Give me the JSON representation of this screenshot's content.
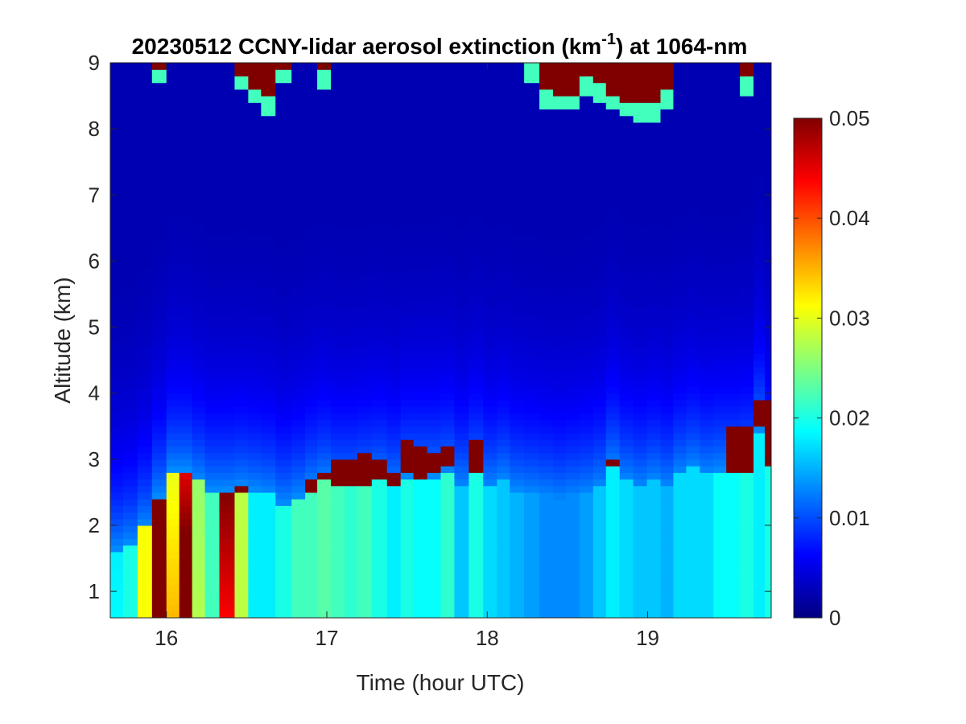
{
  "chart_data": {
    "type": "heatmap",
    "title": "20230512 CCNY-lidar aerosol extinction (km",
    "title_superscript": "-1",
    "title_suffix": ") at 1064-nm",
    "xlabel": "Time (hour UTC)",
    "ylabel": "Altitude (km)",
    "xlim": [
      15.65,
      19.77
    ],
    "ylim": [
      0.6,
      9.0
    ],
    "x_ticks": [
      16,
      17,
      18,
      19
    ],
    "x_tick_labels": [
      "16",
      "17",
      "18",
      "19"
    ],
    "y_ticks": [
      1,
      2,
      3,
      4,
      5,
      6,
      7,
      8,
      9
    ],
    "y_tick_labels": [
      "1",
      "2",
      "3",
      "4",
      "5",
      "6",
      "7",
      "8",
      "9"
    ],
    "colormap": "jet",
    "clim": [
      0,
      0.05
    ],
    "colorbar_ticks": [
      0,
      0.01,
      0.02,
      0.03,
      0.04,
      0.05
    ],
    "colorbar_tick_labels": [
      "0",
      "0.01",
      "0.02",
      "0.03",
      "0.04",
      "0.05"
    ],
    "grid": false,
    "time_step_hours": 0.05,
    "altitude_step_km": 0.1,
    "profiles": [
      {
        "t": 15.68,
        "pbl": 1.65,
        "near": 0.019,
        "pbl_val": 0.018,
        "cloud_base": null,
        "cloud_top": null,
        "top_cloud": null
      },
      {
        "t": 15.78,
        "pbl": 1.75,
        "near": 0.02,
        "pbl_val": 0.02,
        "cloud_base": null,
        "cloud_top": null,
        "top_cloud": null
      },
      {
        "t": 15.86,
        "pbl": 2.0,
        "near": 0.031,
        "pbl_val": 0.031,
        "cloud_base": null,
        "cloud_top": null,
        "top_cloud": null
      },
      {
        "t": 15.96,
        "pbl": 2.45,
        "near": 0.06,
        "pbl_val": 0.06,
        "cloud_base": null,
        "cloud_top": null,
        "top_cloud": 8.9
      },
      {
        "t": 16.04,
        "pbl": 2.85,
        "near": 0.036,
        "pbl_val": 0.03,
        "cloud_base": null,
        "cloud_top": null,
        "top_cloud": null
      },
      {
        "t": 16.12,
        "pbl": 2.85,
        "near": 0.06,
        "pbl_val": 0.045,
        "cloud_base": null,
        "cloud_top": null,
        "top_cloud": null
      },
      {
        "t": 16.2,
        "pbl": 2.7,
        "near": 0.028,
        "pbl_val": 0.026,
        "cloud_base": null,
        "cloud_top": null,
        "top_cloud": null
      },
      {
        "t": 16.28,
        "pbl": 2.55,
        "near": 0.022,
        "pbl_val": 0.022,
        "cloud_base": null,
        "cloud_top": null,
        "top_cloud": null
      },
      {
        "t": 16.38,
        "pbl": 2.55,
        "near": 0.042,
        "pbl_val": 0.05,
        "cloud_base": null,
        "cloud_top": null,
        "top_cloud": null
      },
      {
        "t": 16.47,
        "pbl": 2.6,
        "near": 0.028,
        "pbl_val": 0.028,
        "cloud_base": 2.55,
        "cloud_top": 2.65,
        "top_cloud": 8.8
      },
      {
        "t": 16.55,
        "pbl": 2.55,
        "near": 0.018,
        "pbl_val": 0.018,
        "cloud_base": null,
        "cloud_top": null,
        "top_cloud": 8.6
      },
      {
        "t": 16.63,
        "pbl": 2.5,
        "near": 0.018,
        "pbl_val": 0.018,
        "cloud_base": null,
        "cloud_top": null,
        "top_cloud": 8.45
      },
      {
        "t": 16.73,
        "pbl": 2.35,
        "near": 0.02,
        "pbl_val": 0.02,
        "cloud_base": null,
        "cloud_top": null,
        "top_cloud": 8.9
      },
      {
        "t": 16.83,
        "pbl": 2.45,
        "near": 0.022,
        "pbl_val": 0.022,
        "cloud_base": null,
        "cloud_top": null,
        "top_cloud": null
      },
      {
        "t": 16.9,
        "pbl": 2.6,
        "near": 0.022,
        "pbl_val": 0.022,
        "cloud_base": 2.55,
        "cloud_top": 2.75,
        "top_cloud": null
      },
      {
        "t": 16.98,
        "pbl": 2.7,
        "near": 0.023,
        "pbl_val": 0.023,
        "cloud_base": 2.7,
        "cloud_top": 2.85,
        "top_cloud": 8.85
      },
      {
        "t": 17.07,
        "pbl": 2.6,
        "near": 0.022,
        "pbl_val": 0.022,
        "cloud_base": 2.6,
        "cloud_top": 3.0,
        "top_cloud": null
      },
      {
        "t": 17.15,
        "pbl": 2.6,
        "near": 0.021,
        "pbl_val": 0.021,
        "cloud_base": 2.6,
        "cloud_top": 3.05,
        "top_cloud": null
      },
      {
        "t": 17.23,
        "pbl": 2.65,
        "near": 0.022,
        "pbl_val": 0.022,
        "cloud_base": 2.65,
        "cloud_top": 3.1,
        "top_cloud": null
      },
      {
        "t": 17.33,
        "pbl": 2.7,
        "near": 0.02,
        "pbl_val": 0.02,
        "cloud_base": 2.7,
        "cloud_top": 3.0,
        "top_cloud": null
      },
      {
        "t": 17.42,
        "pbl": 2.6,
        "near": 0.018,
        "pbl_val": 0.018,
        "cloud_base": 2.6,
        "cloud_top": 2.8,
        "top_cloud": null
      },
      {
        "t": 17.5,
        "pbl": 2.75,
        "near": 0.02,
        "pbl_val": 0.02,
        "cloud_base": 2.85,
        "cloud_top": 3.35,
        "top_cloud": null
      },
      {
        "t": 17.58,
        "pbl": 2.75,
        "near": 0.019,
        "pbl_val": 0.019,
        "cloud_base": 2.75,
        "cloud_top": 3.25,
        "top_cloud": null
      },
      {
        "t": 17.67,
        "pbl": 2.75,
        "near": 0.019,
        "pbl_val": 0.019,
        "cloud_base": 2.8,
        "cloud_top": 3.15,
        "top_cloud": null
      },
      {
        "t": 17.75,
        "pbl": 2.8,
        "near": 0.021,
        "pbl_val": 0.021,
        "cloud_base": 2.95,
        "cloud_top": 3.2,
        "top_cloud": null
      },
      {
        "t": 17.84,
        "pbl": 2.6,
        "near": 0.016,
        "pbl_val": 0.016,
        "cloud_base": null,
        "cloud_top": null,
        "top_cloud": null
      },
      {
        "t": 17.93,
        "pbl": 2.8,
        "near": 0.02,
        "pbl_val": 0.02,
        "cloud_base": 2.8,
        "cloud_top": 3.3,
        "top_cloud": null
      },
      {
        "t": 18.02,
        "pbl": 2.6,
        "near": 0.017,
        "pbl_val": 0.017,
        "cloud_base": null,
        "cloud_top": null,
        "top_cloud": null
      },
      {
        "t": 18.1,
        "pbl": 2.7,
        "near": 0.016,
        "pbl_val": 0.016,
        "cloud_base": null,
        "cloud_top": null,
        "top_cloud": null
      },
      {
        "t": 18.18,
        "pbl": 2.55,
        "near": 0.015,
        "pbl_val": 0.015,
        "cloud_base": null,
        "cloud_top": null,
        "top_cloud": null
      },
      {
        "t": 18.28,
        "pbl": 2.5,
        "near": 0.014,
        "pbl_val": 0.014,
        "cloud_base": null,
        "cloud_top": null,
        "top_cloud": 8.95
      },
      {
        "t": 18.37,
        "pbl": 2.45,
        "near": 0.013,
        "pbl_val": 0.013,
        "cloud_base": null,
        "cloud_top": null,
        "top_cloud": 8.55
      },
      {
        "t": 18.45,
        "pbl": 2.4,
        "near": 0.013,
        "pbl_val": 0.013,
        "cloud_base": null,
        "cloud_top": null,
        "top_cloud": 8.5
      },
      {
        "t": 18.53,
        "pbl": 2.45,
        "near": 0.013,
        "pbl_val": 0.013,
        "cloud_base": null,
        "cloud_top": null,
        "top_cloud": 8.5
      },
      {
        "t": 18.62,
        "pbl": 2.5,
        "near": 0.014,
        "pbl_val": 0.014,
        "cloud_base": null,
        "cloud_top": null,
        "top_cloud": 8.75
      },
      {
        "t": 18.7,
        "pbl": 2.6,
        "near": 0.016,
        "pbl_val": 0.016,
        "cloud_base": null,
        "cloud_top": null,
        "top_cloud": 8.65
      },
      {
        "t": 18.78,
        "pbl": 2.9,
        "near": 0.018,
        "pbl_val": 0.018,
        "cloud_base": 2.9,
        "cloud_top": 3.05,
        "top_cloud": 8.5
      },
      {
        "t": 18.87,
        "pbl": 2.7,
        "near": 0.017,
        "pbl_val": 0.017,
        "cloud_base": null,
        "cloud_top": null,
        "top_cloud": 8.4
      },
      {
        "t": 18.95,
        "pbl": 2.6,
        "near": 0.016,
        "pbl_val": 0.016,
        "cloud_base": null,
        "cloud_top": null,
        "top_cloud": 8.35
      },
      {
        "t": 19.04,
        "pbl": 2.7,
        "near": 0.016,
        "pbl_val": 0.016,
        "cloud_base": null,
        "cloud_top": null,
        "top_cloud": 8.35
      },
      {
        "t": 19.12,
        "pbl": 2.6,
        "near": 0.015,
        "pbl_val": 0.015,
        "cloud_base": null,
        "cloud_top": null,
        "top_cloud": 8.55
      },
      {
        "t": 19.2,
        "pbl": 2.8,
        "near": 0.017,
        "pbl_val": 0.017,
        "cloud_base": null,
        "cloud_top": null,
        "top_cloud": null
      },
      {
        "t": 19.28,
        "pbl": 2.9,
        "near": 0.017,
        "pbl_val": 0.017,
        "cloud_base": null,
        "cloud_top": null,
        "top_cloud": null
      },
      {
        "t": 19.37,
        "pbl": 2.8,
        "near": 0.017,
        "pbl_val": 0.017,
        "cloud_base": null,
        "cloud_top": null,
        "top_cloud": null
      },
      {
        "t": 19.45,
        "pbl": 2.85,
        "near": 0.019,
        "pbl_val": 0.019,
        "cloud_base": null,
        "cloud_top": null,
        "top_cloud": null
      },
      {
        "t": 19.53,
        "pbl": 2.85,
        "near": 0.019,
        "pbl_val": 0.019,
        "cloud_base": 2.85,
        "cloud_top": 3.5,
        "top_cloud": null
      },
      {
        "t": 19.62,
        "pbl": 2.9,
        "near": 0.02,
        "pbl_val": 0.02,
        "cloud_base": 2.85,
        "cloud_top": 3.55,
        "top_cloud": 8.75
      },
      {
        "t": 19.7,
        "pbl": 3.45,
        "near": 0.018,
        "pbl_val": 0.018,
        "cloud_base": 3.5,
        "cloud_top": 3.95,
        "top_cloud": null
      },
      {
        "t": 19.76,
        "pbl": 2.9,
        "near": 0.02,
        "pbl_val": 0.02,
        "cloud_base": 2.9,
        "cloud_top": 3.9,
        "top_cloud": null
      }
    ]
  }
}
